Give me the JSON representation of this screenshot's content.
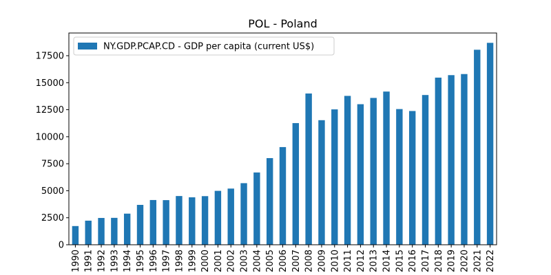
{
  "chart_data": {
    "type": "bar",
    "title": "POL - Poland",
    "xlabel": "",
    "ylabel": "",
    "categories": [
      "1990",
      "1991",
      "1992",
      "1993",
      "1994",
      "1995",
      "1996",
      "1997",
      "1998",
      "1999",
      "2000",
      "2001",
      "2002",
      "2003",
      "2004",
      "2005",
      "2006",
      "2007",
      "2008",
      "2009",
      "2010",
      "2011",
      "2012",
      "2013",
      "2014",
      "2015",
      "2016",
      "2017",
      "2018",
      "2019",
      "2020",
      "2021",
      "2022"
    ],
    "series": [
      {
        "name": "NY.GDP.PCAP.CD - GDP per capita (current US$)",
        "color": "#1f77b4",
        "values": [
          1730,
          2230,
          2480,
          2490,
          2880,
          3690,
          4140,
          4130,
          4510,
          4390,
          4500,
          4990,
          5200,
          5700,
          6690,
          8020,
          9040,
          11260,
          14000,
          11530,
          12530,
          13780,
          13010,
          13590,
          14180,
          12560,
          12380,
          13860,
          15470,
          15700,
          15800,
          18050,
          18690
        ]
      }
    ],
    "ylim": [
      0,
      19600
    ],
    "yticks": [
      "0",
      "2500",
      "5000",
      "7500",
      "10000",
      "12500",
      "15000",
      "17500"
    ],
    "grid": false,
    "legend_position": "top-left"
  }
}
